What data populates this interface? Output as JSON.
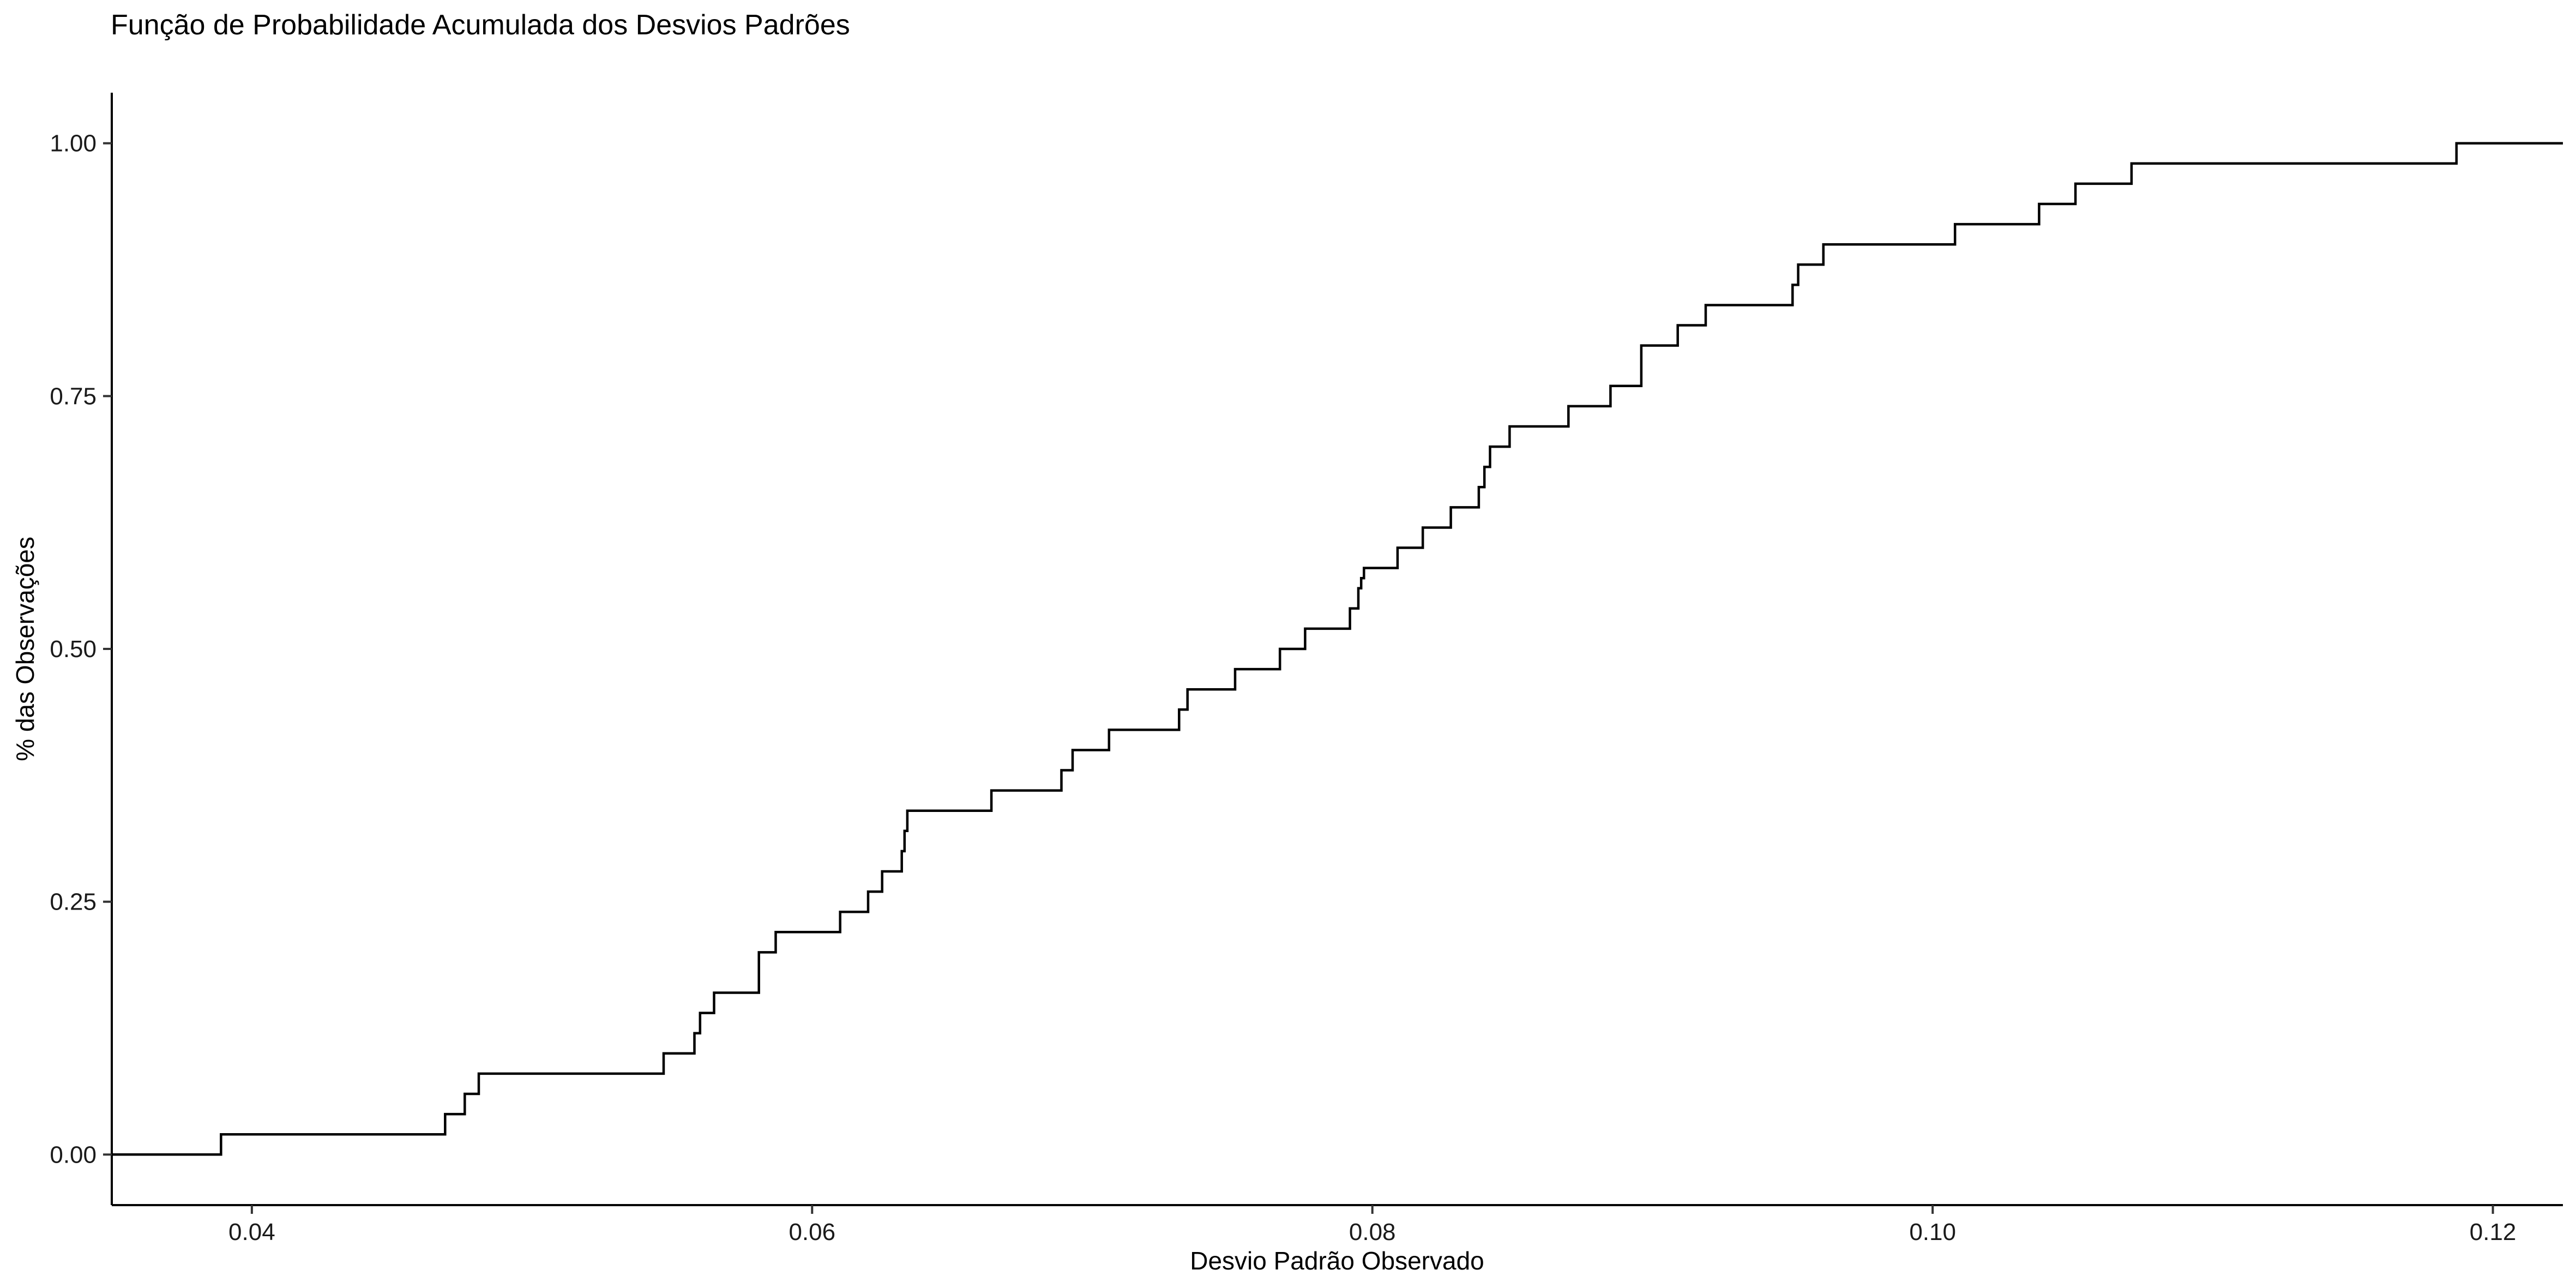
{
  "chart_data": {
    "type": "line",
    "subtype": "ecdf-step",
    "title": "Função de Probabilidade Acumulada dos Desvios Padrões",
    "xlabel": "Desvio Padrão Observado",
    "ylabel": "% das Observações",
    "xlim": [
      0.035,
      0.1225
    ],
    "ylim": [
      -0.05,
      1.05
    ],
    "x_ticks": [
      0.04,
      0.06,
      0.08,
      0.1,
      0.12
    ],
    "x_tick_labels": [
      "0.04",
      "0.06",
      "0.08",
      "0.10",
      "0.12"
    ],
    "y_ticks": [
      0.0,
      0.25,
      0.5,
      0.75,
      1.0
    ],
    "y_tick_labels": [
      "0.00",
      "0.25",
      "0.50",
      "0.75",
      "1.00"
    ],
    "grid": false,
    "line_color": "#000000",
    "series": [
      {
        "x": [
          0.0389,
          0.0469,
          0.0476,
          0.0481,
          0.0547,
          0.0558,
          0.056,
          0.0565,
          0.0581,
          0.0587,
          0.061,
          0.062,
          0.0625,
          0.0632,
          0.0633,
          0.0634,
          0.0664,
          0.0689,
          0.0693,
          0.0706,
          0.0731,
          0.0734,
          0.0751,
          0.0767,
          0.0776,
          0.0792,
          0.0795,
          0.0796,
          0.0797,
          0.0809,
          0.0818,
          0.0828,
          0.0838,
          0.084,
          0.0842,
          0.0849,
          0.087,
          0.0885,
          0.0896,
          0.0909,
          0.0919,
          0.095,
          0.0952,
          0.0961,
          0.1008,
          0.1038,
          0.1051,
          0.1071,
          0.1187
        ],
        "y": [
          0.02,
          0.04,
          0.06,
          0.08,
          0.1,
          0.12,
          0.14,
          0.16,
          0.2,
          0.22,
          0.24,
          0.26,
          0.28,
          0.3,
          0.32,
          0.34,
          0.36,
          0.38,
          0.4,
          0.42,
          0.44,
          0.46,
          0.48,
          0.5,
          0.52,
          0.54,
          0.56,
          0.57,
          0.58,
          0.6,
          0.62,
          0.64,
          0.66,
          0.68,
          0.7,
          0.72,
          0.74,
          0.76,
          0.8,
          0.82,
          0.84,
          0.86,
          0.88,
          0.9,
          0.92,
          0.94,
          0.96,
          0.98,
          1.0
        ]
      }
    ]
  }
}
